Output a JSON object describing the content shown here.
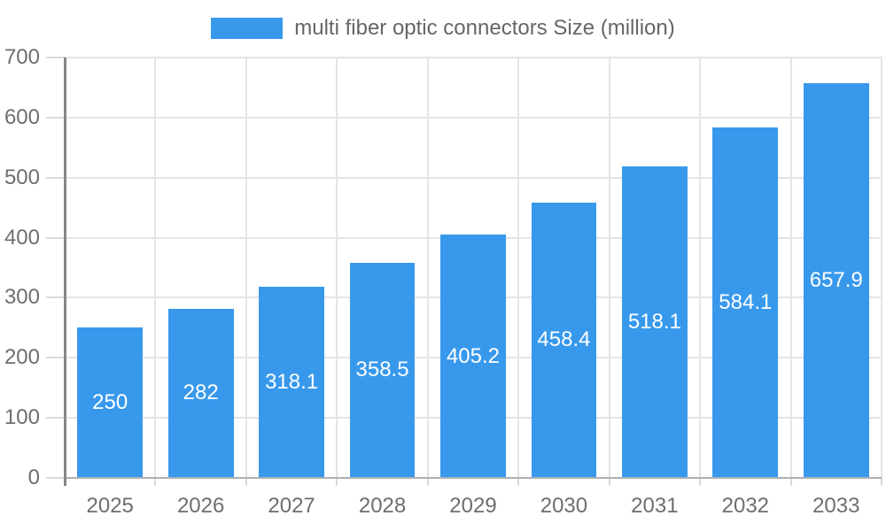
{
  "legend": {
    "label": "multi fiber optic connectors Size (million)"
  },
  "chart_data": {
    "type": "bar",
    "title": "",
    "xlabel": "",
    "ylabel": "",
    "categories": [
      "2025",
      "2026",
      "2027",
      "2028",
      "2029",
      "2030",
      "2031",
      "2032",
      "2033"
    ],
    "values": [
      250,
      282,
      318.1,
      358.5,
      405.2,
      458.4,
      518.1,
      584.1,
      657.9
    ],
    "value_labels": [
      "250",
      "282",
      "318.1",
      "358.5",
      "405.2",
      "458.4",
      "518.1",
      "584.1",
      "657.9"
    ],
    "series_name": "multi fiber optic connectors Size (million)",
    "ylim": [
      0,
      700
    ],
    "y_ticks": [
      0,
      100,
      200,
      300,
      400,
      500,
      600,
      700
    ],
    "grid": true,
    "legend_position": "top",
    "colors": {
      "bar": "#3899ec",
      "value_label": "#ffffff",
      "tick_label": "#6e6e6e",
      "legend_text": "#666666",
      "gridline": "#e4e4e4",
      "tick_mark": "#d9d9d9",
      "axis_line": "#878787",
      "baseline": "#b0b0b0",
      "background": "#ffffff"
    }
  }
}
